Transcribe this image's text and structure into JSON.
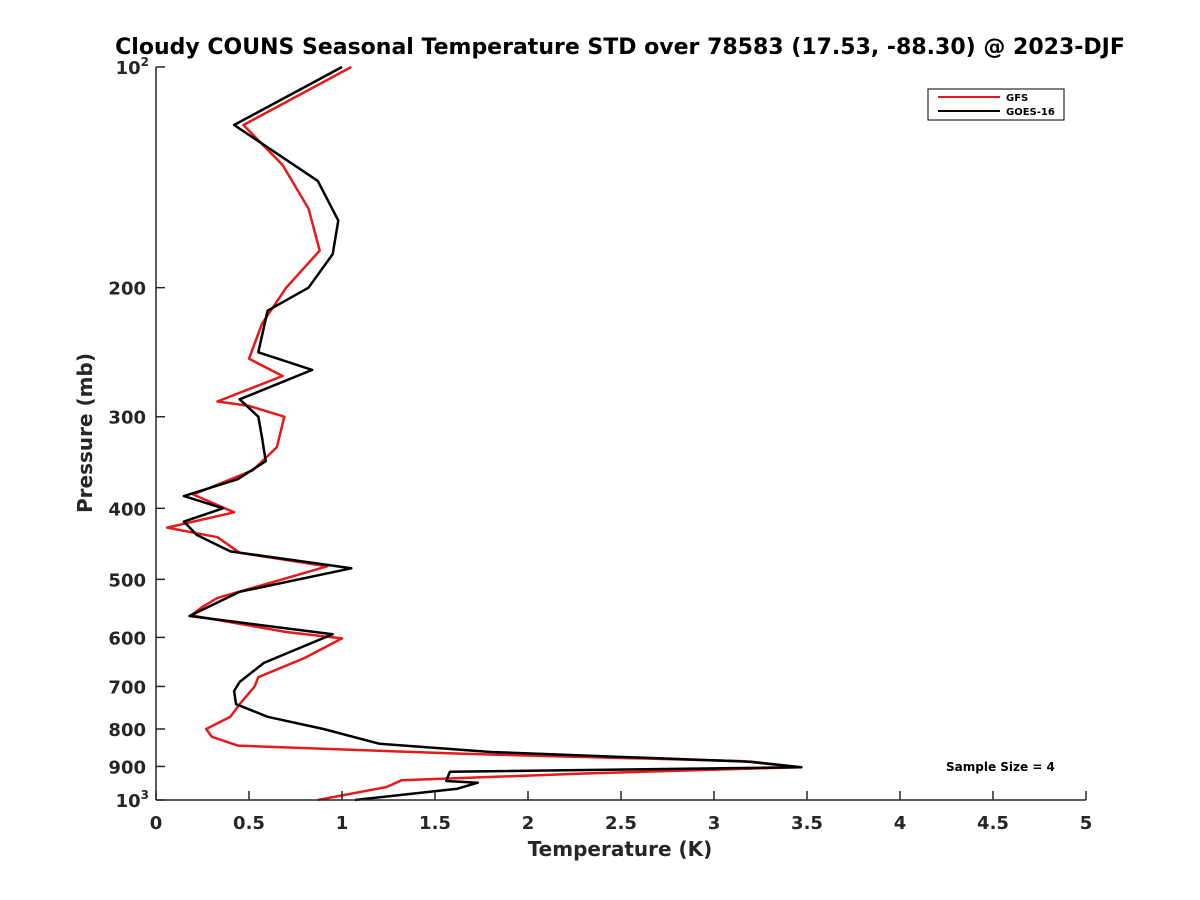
{
  "chart_data": {
    "type": "line",
    "title": "Cloudy COUNS Seasonal Temperature STD over 78583 (17.53, -88.30) @ 2023-DJF",
    "xlabel": "Temperature (K)",
    "ylabel": "Pressure (mb)",
    "xlim": [
      0,
      5
    ],
    "ylim": [
      100,
      1000
    ],
    "y_scale": "log",
    "y_reversed": true,
    "x_ticks": [
      "0",
      "0.5",
      "1",
      "1.5",
      "2",
      "2.5",
      "3",
      "3.5",
      "4",
      "4.5",
      "5"
    ],
    "y_ticks": [
      {
        "value": 100,
        "base": "10",
        "exp": "2"
      },
      {
        "value": 200,
        "label": "200"
      },
      {
        "value": 300,
        "label": "300"
      },
      {
        "value": 400,
        "label": "400"
      },
      {
        "value": 500,
        "label": "500"
      },
      {
        "value": 600,
        "label": "600"
      },
      {
        "value": 700,
        "label": "700"
      },
      {
        "value": 800,
        "label": "800"
      },
      {
        "value": 900,
        "label": "900"
      },
      {
        "value": 1000,
        "base": "10",
        "exp": "3"
      }
    ],
    "legend_position": "top-right",
    "annotation": "Sample Size = 4",
    "series": [
      {
        "name": "GFS",
        "color": "#e41a1c",
        "points": [
          [
            1.05,
            100
          ],
          [
            0.47,
            120
          ],
          [
            0.68,
            136
          ],
          [
            0.82,
            156
          ],
          [
            0.88,
            178
          ],
          [
            0.7,
            200
          ],
          [
            0.57,
            224
          ],
          [
            0.5,
            250
          ],
          [
            0.68,
            264
          ],
          [
            0.33,
            286
          ],
          [
            0.5,
            290
          ],
          [
            0.69,
            300
          ],
          [
            0.65,
            330
          ],
          [
            0.52,
            355
          ],
          [
            0.2,
            383
          ],
          [
            0.42,
            405
          ],
          [
            0.06,
            425
          ],
          [
            0.33,
            438
          ],
          [
            0.45,
            460
          ],
          [
            0.92,
            480
          ],
          [
            0.68,
            500
          ],
          [
            0.33,
            530
          ],
          [
            0.25,
            545
          ],
          [
            0.19,
            560
          ],
          [
            0.7,
            590
          ],
          [
            1.0,
            602
          ],
          [
            0.8,
            640
          ],
          [
            0.55,
            680
          ],
          [
            0.53,
            700
          ],
          [
            0.45,
            740
          ],
          [
            0.4,
            770
          ],
          [
            0.27,
            800
          ],
          [
            0.3,
            820
          ],
          [
            0.44,
            843
          ],
          [
            1.65,
            865
          ],
          [
            3.15,
            885
          ],
          [
            3.45,
            902
          ],
          [
            2.3,
            920
          ],
          [
            1.32,
            940
          ],
          [
            1.24,
            960
          ],
          [
            0.87,
            1000
          ]
        ]
      },
      {
        "name": "GOES-16",
        "color": "#000000",
        "points": [
          [
            1.0,
            100
          ],
          [
            0.42,
            120
          ],
          [
            0.87,
            143
          ],
          [
            0.98,
            162
          ],
          [
            0.95,
            180
          ],
          [
            0.82,
            200
          ],
          [
            0.6,
            215
          ],
          [
            0.55,
            245
          ],
          [
            0.84,
            259
          ],
          [
            0.45,
            284
          ],
          [
            0.55,
            300
          ],
          [
            0.57,
            320
          ],
          [
            0.59,
            345
          ],
          [
            0.44,
            365
          ],
          [
            0.15,
            385
          ],
          [
            0.36,
            400
          ],
          [
            0.15,
            417
          ],
          [
            0.22,
            435
          ],
          [
            0.4,
            458
          ],
          [
            1.05,
            483
          ],
          [
            0.45,
            520
          ],
          [
            0.18,
            561
          ],
          [
            0.95,
            594
          ],
          [
            0.58,
            650
          ],
          [
            0.45,
            690
          ],
          [
            0.42,
            710
          ],
          [
            0.43,
            740
          ],
          [
            0.6,
            770
          ],
          [
            0.9,
            800
          ],
          [
            1.2,
            838
          ],
          [
            1.8,
            860
          ],
          [
            3.2,
            887
          ],
          [
            3.47,
            902
          ],
          [
            1.58,
            915
          ],
          [
            1.56,
            942
          ],
          [
            1.73,
            947
          ],
          [
            1.62,
            965
          ],
          [
            1.07,
            1000
          ]
        ]
      }
    ]
  }
}
